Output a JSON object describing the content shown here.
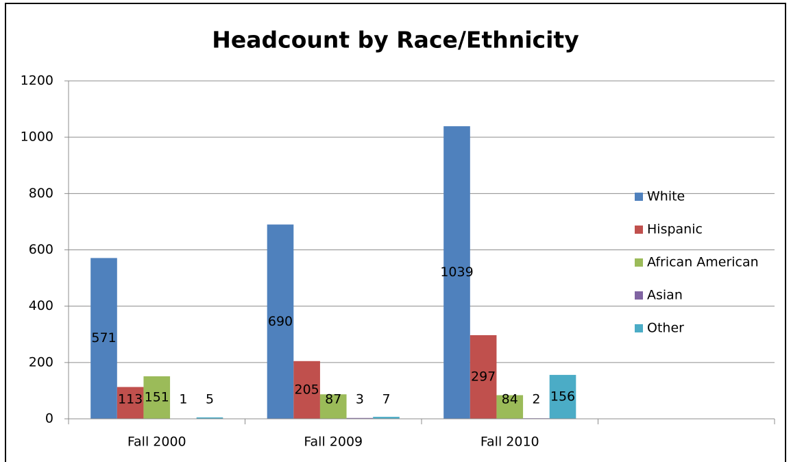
{
  "chart_data": {
    "type": "bar",
    "title": "Headcount by Race/Ethnicity",
    "categories": [
      "Fall 2000",
      "Fall 2009",
      "Fall 2010",
      null
    ],
    "series": [
      {
        "name": "White",
        "color": "#4f81bd",
        "values": [
          571,
          690,
          1039,
          null
        ]
      },
      {
        "name": "Hispanic",
        "color": "#c0504d",
        "values": [
          113,
          205,
          297,
          null
        ]
      },
      {
        "name": "African American",
        "color": "#9bbb59",
        "values": [
          151,
          87,
          84,
          null
        ]
      },
      {
        "name": "Asian",
        "color": "#8064a2",
        "values": [
          1,
          3,
          2,
          null
        ]
      },
      {
        "name": "Other",
        "color": "#4bacc6",
        "values": [
          5,
          7,
          156,
          null
        ]
      }
    ],
    "ylim": [
      0,
      1200
    ],
    "yticks": [
      0,
      200,
      400,
      600,
      800,
      1000,
      1200
    ],
    "grid": true,
    "legend": "right",
    "data_labels": true
  }
}
